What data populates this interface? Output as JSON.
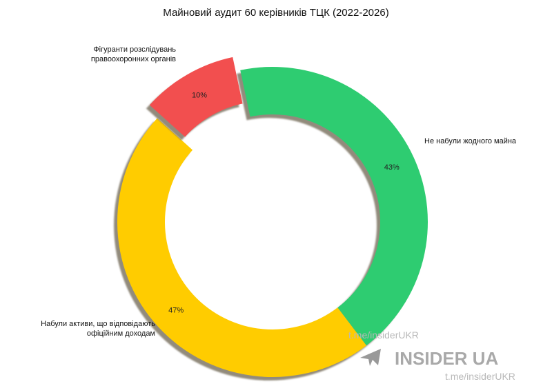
{
  "chart_data": {
    "type": "donut",
    "title": "Майновий аудит 60 керівників ТЦК (2022-2026)",
    "categories": [
      "Не набули жодного майна",
      "Набули активи, що відповідають офіційним доходам",
      "Фігуранти розслідувань правоохоронних органів"
    ],
    "values": [
      43,
      47,
      10
    ],
    "value_labels": [
      "43%",
      "47%",
      "10%"
    ],
    "colors": [
      "#2ecc71",
      "#ffcc00",
      "#f24f4f"
    ],
    "exploded": [
      false,
      false,
      true
    ]
  },
  "watermarks": [
    "t.me/insiderUKR",
    "INSIDER UA",
    "t.me/insiderUKR"
  ]
}
